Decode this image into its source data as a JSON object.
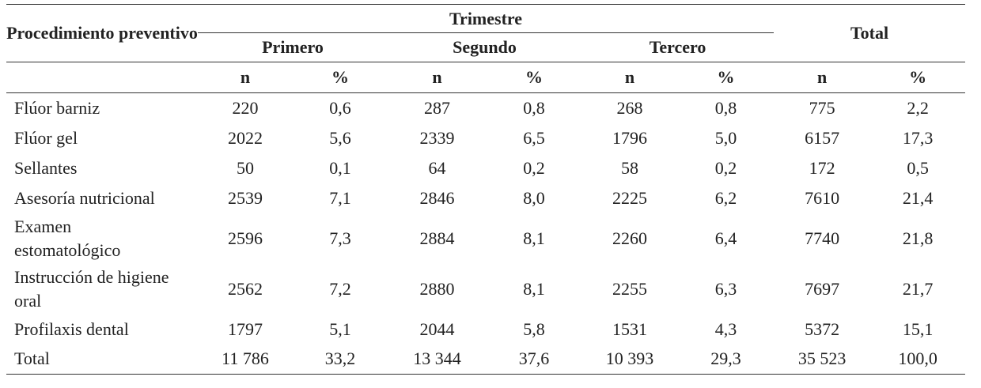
{
  "table": {
    "header": {
      "row_label": "Procedimiento preventivo",
      "group": "Trimestre",
      "periods": [
        "Primero",
        "Segundo",
        "Tercero"
      ],
      "total": "Total",
      "sub": [
        "n",
        "%",
        "n",
        "%",
        "n",
        "%",
        "n",
        "%"
      ]
    },
    "rows": [
      [
        "Flúor barniz",
        "220",
        "0,6",
        "287",
        "0,8",
        "268",
        "0,8",
        "775",
        "2,2"
      ],
      [
        "Flúor gel",
        "2022",
        "5,6",
        "2339",
        "6,5",
        "1796",
        "5,0",
        "6157",
        "17,3"
      ],
      [
        "Sellantes",
        "50",
        "0,1",
        "64",
        "0,2",
        "58",
        "0,2",
        "172",
        "0,5"
      ],
      [
        "Asesoría nutricional",
        "2539",
        "7,1",
        "2846",
        "8,0",
        "2225",
        "6,2",
        "7610",
        "21,4"
      ],
      [
        "Examen estomatológico",
        "2596",
        "7,3",
        "2884",
        "8,1",
        "2260",
        "6,4",
        "7740",
        "21,8"
      ],
      [
        "Instrucción de higiene oral",
        "2562",
        "7,2",
        "2880",
        "8,1",
        "2255",
        "6,3",
        "7697",
        "21,7"
      ],
      [
        "Profilaxis dental",
        "1797",
        "5,1",
        "2044",
        "5,8",
        "1531",
        "4,3",
        "5372",
        "15,1"
      ],
      [
        "Total",
        "11 786",
        "33,2",
        "13 344",
        "37,6",
        "10 393",
        "29,3",
        "35 523",
        "100,0"
      ]
    ]
  }
}
